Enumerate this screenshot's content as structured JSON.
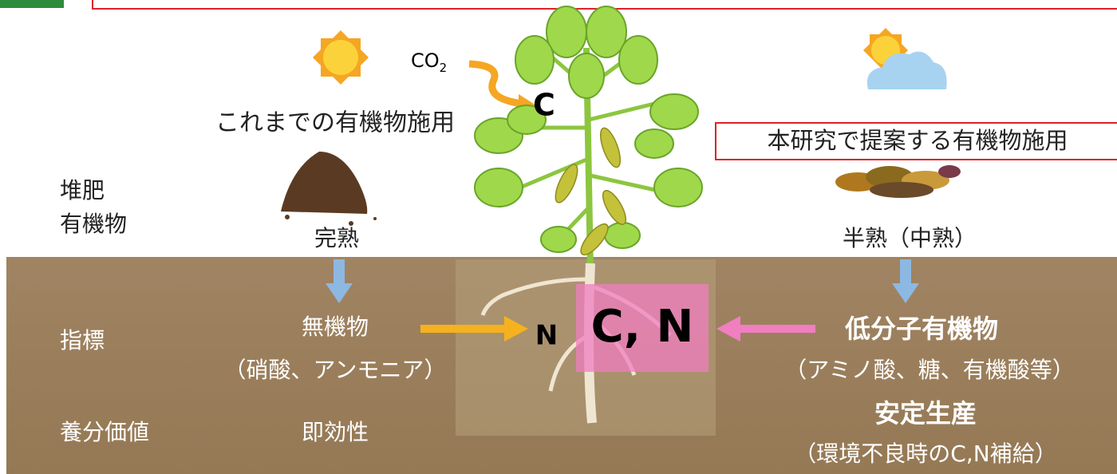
{
  "co2": {
    "main": "CO",
    "sub": "2"
  },
  "carbon_label": "C",
  "left": {
    "title": "これまでの有機物施用",
    "compost_maturity": "完熟",
    "product": [
      "無機物",
      "（硝酸、アンモニア）"
    ],
    "value": "即効性"
  },
  "right": {
    "title": "本研究で提案する有機物施用",
    "compost_maturity": "半熟（中熟）",
    "product": [
      "低分子有機物",
      "（アミノ酸、糖、有機酸等）"
    ],
    "value": [
      "安定生産",
      "（環境不良時のC,N補給）"
    ]
  },
  "row_labels": {
    "compost": [
      "堆肥",
      "有機物"
    ],
    "indicator": "指標",
    "nutrient_value": "養分価値"
  },
  "root": {
    "left_input": "N",
    "right_input": "C, N"
  }
}
